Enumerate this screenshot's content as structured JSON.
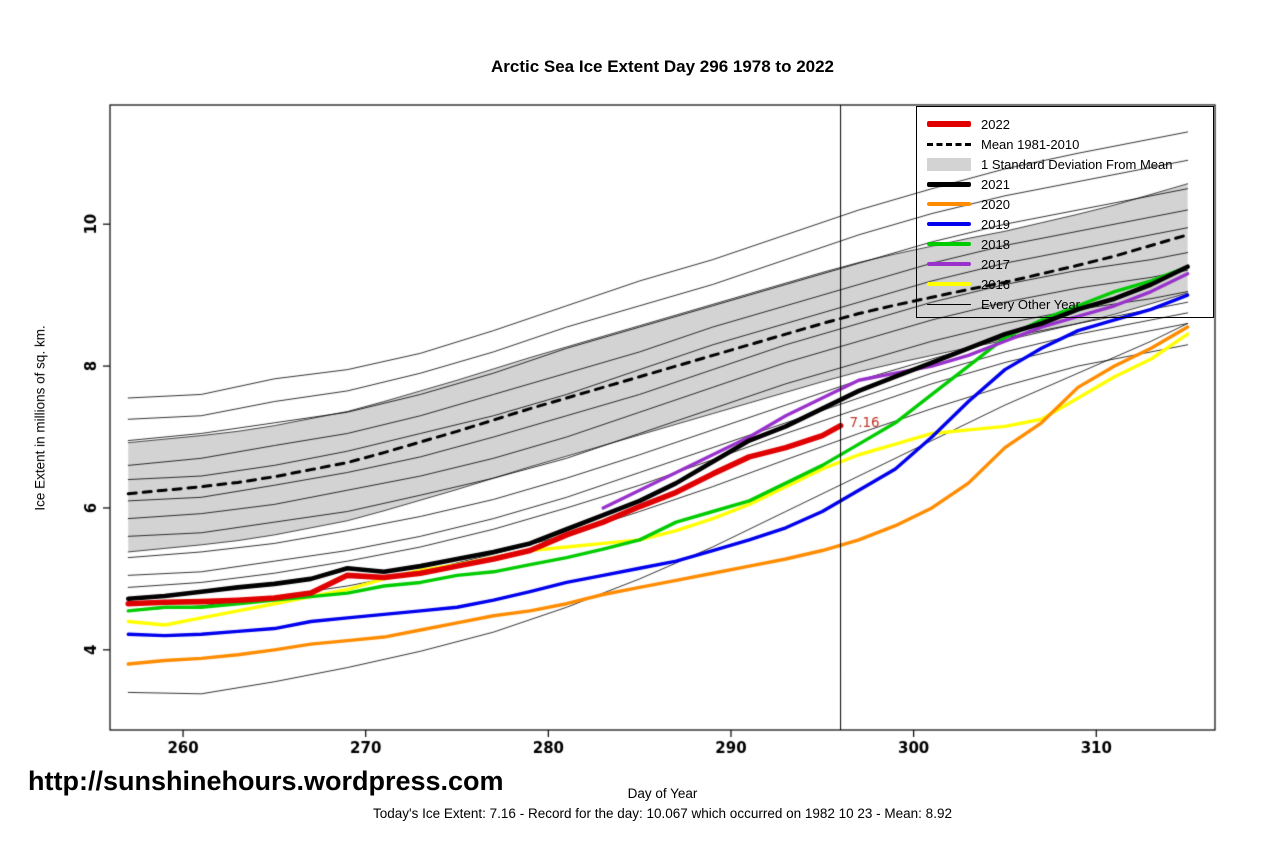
{
  "page": {
    "background": "#ffffff"
  },
  "header": {
    "title": "Arctic Sea Ice Extent Day 296 1978 to 2022"
  },
  "watermark": {
    "text": "http://sunshinehours.wordpress.com"
  },
  "footer": {
    "xlabel": "Day of Year",
    "stats": "Today's Ice Extent: 7.16  - Record for the day: 10.067 which occurred on 1982 10 23  - Mean: 8.92"
  },
  "chart_data": {
    "type": "line",
    "title": "Arctic Sea Ice Extent Day 296 1978 to 2022",
    "xlabel": "Day of Year",
    "ylabel": "Ice Extent in millions of sq. km.",
    "xlim": [
      256,
      316.5
    ],
    "ylim": [
      2.87,
      11.68
    ],
    "xticks": [
      260,
      270,
      280,
      290,
      300,
      310
    ],
    "yticks": [
      4,
      6,
      8,
      10
    ],
    "grid": false,
    "vline_x": 296,
    "annotation": {
      "x": 296,
      "y": 7.16,
      "text": "7.16",
      "color": "#c0392b"
    },
    "legend": {
      "position": "top-right",
      "entries": [
        {
          "label": "2022",
          "swatch": "line",
          "color": "#e00000",
          "lw": 6
        },
        {
          "label": "Mean 1981-2010",
          "swatch": "dashed",
          "color": "#000000",
          "lw": 3
        },
        {
          "label": "1 Standard Deviation From Mean",
          "swatch": "box",
          "color": "#d3d3d3"
        },
        {
          "label": "2021",
          "swatch": "line",
          "color": "#000000",
          "lw": 5
        },
        {
          "label": "2020",
          "swatch": "line",
          "color": "#ff8c00",
          "lw": 4
        },
        {
          "label": "2019",
          "swatch": "line",
          "color": "#0000ee",
          "lw": 4
        },
        {
          "label": "2018",
          "swatch": "line",
          "color": "#00cc00",
          "lw": 4
        },
        {
          "label": "2017",
          "swatch": "line",
          "color": "#9932cc",
          "lw": 4
        },
        {
          "label": "2016",
          "swatch": "line",
          "color": "#ffff00",
          "lw": 4
        },
        {
          "label": "Every Other Year",
          "swatch": "line",
          "color": "#000000",
          "lw": 1
        }
      ]
    },
    "band": {
      "name": "1 Standard Deviation From Mean",
      "color": "#d3d3d3",
      "x": [
        257,
        259,
        261,
        263,
        265,
        267,
        269,
        271,
        273,
        275,
        277,
        279,
        281,
        283,
        285,
        287,
        289,
        291,
        293,
        295,
        297,
        299,
        301,
        303,
        305,
        307,
        309,
        311,
        313,
        315
      ],
      "upper": [
        6.92,
        6.97,
        7.02,
        7.08,
        7.16,
        7.26,
        7.36,
        7.5,
        7.65,
        7.8,
        7.96,
        8.12,
        8.27,
        8.42,
        8.57,
        8.72,
        8.87,
        9.02,
        9.17,
        9.32,
        9.46,
        9.58,
        9.69,
        9.8,
        9.9,
        10.02,
        10.14,
        10.27,
        10.42,
        10.57
      ],
      "lower": [
        5.38,
        5.43,
        5.48,
        5.54,
        5.62,
        5.72,
        5.82,
        5.96,
        6.11,
        6.26,
        6.42,
        6.58,
        6.73,
        6.88,
        7.03,
        7.18,
        7.33,
        7.48,
        7.63,
        7.78,
        7.92,
        8.04,
        8.15,
        8.26,
        8.36,
        8.48,
        8.6,
        8.73,
        8.88,
        9.03
      ]
    },
    "mean_series": {
      "name": "Mean 1981-2010",
      "style": "dashed",
      "color": "#000000",
      "lw": 3,
      "x": [
        257,
        259,
        261,
        263,
        265,
        267,
        269,
        271,
        273,
        275,
        277,
        279,
        281,
        283,
        285,
        287,
        289,
        291,
        293,
        295,
        297,
        299,
        301,
        303,
        305,
        307,
        309,
        311,
        313,
        315
      ],
      "values": [
        6.2,
        6.25,
        6.3,
        6.36,
        6.44,
        6.54,
        6.64,
        6.78,
        6.93,
        7.08,
        7.24,
        7.4,
        7.55,
        7.7,
        7.85,
        8.0,
        8.15,
        8.3,
        8.45,
        8.6,
        8.74,
        8.86,
        8.97,
        9.08,
        9.18,
        9.3,
        9.42,
        9.55,
        9.7,
        9.85
      ]
    },
    "series": [
      {
        "name": "2016",
        "color": "#ffff00",
        "lw": 3.4,
        "x": [
          257,
          259,
          261,
          263,
          265,
          267,
          269,
          271,
          273,
          275,
          277,
          279,
          281,
          283,
          285,
          287,
          289,
          291,
          293,
          295,
          297,
          299,
          301,
          303,
          305,
          307,
          309,
          311,
          313,
          315
        ],
        "values": [
          4.4,
          4.35,
          4.45,
          4.55,
          4.65,
          4.75,
          4.85,
          5.0,
          5.12,
          5.2,
          5.3,
          5.4,
          5.45,
          5.5,
          5.55,
          5.68,
          5.85,
          6.05,
          6.3,
          6.55,
          6.75,
          6.9,
          7.05,
          7.1,
          7.15,
          7.25,
          7.55,
          7.85,
          8.1,
          8.45
        ]
      },
      {
        "name": "2019",
        "color": "#0000ee",
        "lw": 3.4,
        "x": [
          257,
          259,
          261,
          263,
          265,
          267,
          269,
          271,
          273,
          275,
          277,
          279,
          281,
          283,
          285,
          287,
          289,
          291,
          293,
          295,
          297,
          299,
          301,
          303,
          305,
          307,
          309,
          311,
          313,
          315
        ],
        "values": [
          4.22,
          4.2,
          4.22,
          4.26,
          4.3,
          4.4,
          4.45,
          4.5,
          4.55,
          4.6,
          4.7,
          4.82,
          4.95,
          5.05,
          5.15,
          5.25,
          5.4,
          5.55,
          5.72,
          5.95,
          6.25,
          6.55,
          7.0,
          7.5,
          7.95,
          8.25,
          8.5,
          8.65,
          8.8,
          9.0
        ]
      },
      {
        "name": "2018",
        "color": "#00cc00",
        "lw": 3.4,
        "x": [
          257,
          259,
          261,
          263,
          265,
          267,
          269,
          271,
          273,
          275,
          277,
          279,
          281,
          283,
          285,
          287,
          289,
          291,
          293,
          295,
          297,
          299,
          301,
          303,
          305,
          307,
          309,
          311,
          313,
          315
        ],
        "values": [
          4.55,
          4.6,
          4.6,
          4.65,
          4.7,
          4.75,
          4.8,
          4.9,
          4.95,
          5.05,
          5.1,
          5.2,
          5.3,
          5.42,
          5.55,
          5.8,
          5.95,
          6.1,
          6.35,
          6.6,
          6.9,
          7.2,
          7.6,
          8.0,
          8.4,
          8.65,
          8.85,
          9.05,
          9.2,
          9.4
        ]
      },
      {
        "name": "2020",
        "color": "#ff8c00",
        "lw": 3.4,
        "x": [
          257,
          259,
          261,
          263,
          265,
          267,
          269,
          271,
          273,
          275,
          277,
          279,
          281,
          283,
          285,
          287,
          289,
          291,
          293,
          295,
          297,
          299,
          301,
          303,
          305,
          307,
          309,
          311,
          313,
          315
        ],
        "values": [
          3.8,
          3.85,
          3.88,
          3.93,
          4.0,
          4.08,
          4.13,
          4.18,
          4.28,
          4.38,
          4.48,
          4.55,
          4.65,
          4.78,
          4.88,
          4.98,
          5.08,
          5.18,
          5.28,
          5.4,
          5.55,
          5.75,
          6.0,
          6.35,
          6.85,
          7.2,
          7.7,
          8.0,
          8.25,
          8.55
        ]
      },
      {
        "name": "2017",
        "color": "#9932cc",
        "lw": 3.4,
        "x": [
          283,
          285,
          287,
          289,
          291,
          293,
          295,
          297,
          299,
          301,
          303,
          305,
          307,
          309,
          311,
          313,
          315
        ],
        "values": [
          6.0,
          6.25,
          6.5,
          6.75,
          7.0,
          7.3,
          7.55,
          7.8,
          7.9,
          8.0,
          8.15,
          8.35,
          8.55,
          8.7,
          8.85,
          9.05,
          9.3
        ]
      },
      {
        "name": "2021",
        "color": "#000000",
        "lw": 4.6,
        "x": [
          257,
          259,
          261,
          263,
          265,
          267,
          269,
          271,
          273,
          275,
          277,
          279,
          281,
          283,
          285,
          287,
          289,
          291,
          293,
          295,
          297,
          299,
          301,
          303,
          305,
          307,
          309,
          311,
          313,
          315
        ],
        "values": [
          4.72,
          4.76,
          4.82,
          4.88,
          4.93,
          5.0,
          5.15,
          5.1,
          5.18,
          5.28,
          5.38,
          5.5,
          5.7,
          5.9,
          6.1,
          6.35,
          6.65,
          6.95,
          7.15,
          7.4,
          7.65,
          7.85,
          8.05,
          8.25,
          8.45,
          8.6,
          8.8,
          8.95,
          9.15,
          9.4
        ]
      },
      {
        "name": "2022",
        "color": "#e00000",
        "lw": 5.6,
        "x": [
          257,
          259,
          261,
          263,
          265,
          267,
          269,
          271,
          273,
          275,
          277,
          279,
          281,
          283,
          285,
          287,
          289,
          291,
          293,
          295,
          296
        ],
        "values": [
          4.65,
          4.67,
          4.68,
          4.7,
          4.73,
          4.8,
          5.05,
          5.02,
          5.08,
          5.18,
          5.28,
          5.4,
          5.62,
          5.8,
          6.02,
          6.22,
          6.48,
          6.72,
          6.85,
          7.02,
          7.16
        ]
      }
    ],
    "background_series": {
      "name": "Every Other Year",
      "color": "#000000",
      "lw": 0.8,
      "x": [
        257,
        261,
        265,
        269,
        273,
        277,
        281,
        285,
        289,
        293,
        297,
        301,
        305,
        309,
        313,
        315
      ],
      "lines": [
        [
          7.55,
          7.6,
          7.82,
          7.95,
          8.18,
          8.5,
          8.85,
          9.2,
          9.5,
          9.85,
          10.2,
          10.5,
          10.78,
          11.0,
          11.2,
          11.3
        ],
        [
          7.25,
          7.3,
          7.5,
          7.65,
          7.9,
          8.2,
          8.55,
          8.85,
          9.15,
          9.5,
          9.85,
          10.15,
          10.4,
          10.6,
          10.8,
          10.9
        ],
        [
          6.95,
          7.05,
          7.2,
          7.35,
          7.6,
          7.9,
          8.25,
          8.55,
          8.85,
          9.15,
          9.45,
          9.75,
          10.0,
          10.2,
          10.4,
          10.5
        ],
        [
          6.6,
          6.7,
          6.88,
          7.05,
          7.3,
          7.6,
          7.9,
          8.2,
          8.55,
          8.85,
          9.15,
          9.45,
          9.7,
          9.9,
          10.1,
          10.2
        ],
        [
          6.4,
          6.45,
          6.6,
          6.8,
          7.05,
          7.3,
          7.6,
          7.95,
          8.3,
          8.6,
          8.9,
          9.2,
          9.45,
          9.65,
          9.85,
          9.95
        ],
        [
          6.1,
          6.15,
          6.32,
          6.5,
          6.72,
          7.0,
          7.3,
          7.6,
          7.95,
          8.3,
          8.6,
          8.9,
          9.15,
          9.35,
          9.5,
          9.6
        ],
        [
          5.85,
          5.92,
          6.05,
          6.25,
          6.45,
          6.7,
          7.0,
          7.35,
          7.7,
          8.05,
          8.35,
          8.65,
          8.9,
          9.1,
          9.25,
          9.35
        ],
        [
          5.6,
          5.65,
          5.8,
          5.95,
          6.18,
          6.42,
          6.7,
          7.05,
          7.4,
          7.75,
          8.05,
          8.35,
          8.6,
          8.8,
          8.95,
          9.05
        ],
        [
          5.3,
          5.38,
          5.5,
          5.68,
          5.88,
          6.12,
          6.42,
          6.75,
          7.1,
          7.45,
          7.8,
          8.1,
          8.4,
          8.6,
          8.8,
          8.9
        ],
        [
          5.05,
          5.1,
          5.25,
          5.4,
          5.6,
          5.85,
          6.15,
          6.5,
          6.85,
          7.2,
          7.55,
          7.9,
          8.2,
          8.45,
          8.65,
          8.75
        ],
        [
          4.88,
          4.95,
          5.08,
          5.25,
          5.45,
          5.7,
          6.0,
          6.32,
          6.68,
          7.05,
          7.4,
          7.75,
          8.05,
          8.3,
          8.5,
          8.6
        ],
        [
          4.55,
          4.62,
          4.75,
          4.9,
          5.1,
          5.35,
          5.62,
          5.95,
          6.3,
          6.68,
          7.05,
          7.4,
          7.72,
          8.0,
          8.2,
          8.3
        ],
        [
          3.4,
          3.38,
          3.55,
          3.75,
          3.98,
          4.25,
          4.6,
          5.0,
          5.45,
          5.95,
          6.45,
          6.95,
          7.45,
          7.9,
          8.35,
          8.6
        ]
      ]
    }
  }
}
